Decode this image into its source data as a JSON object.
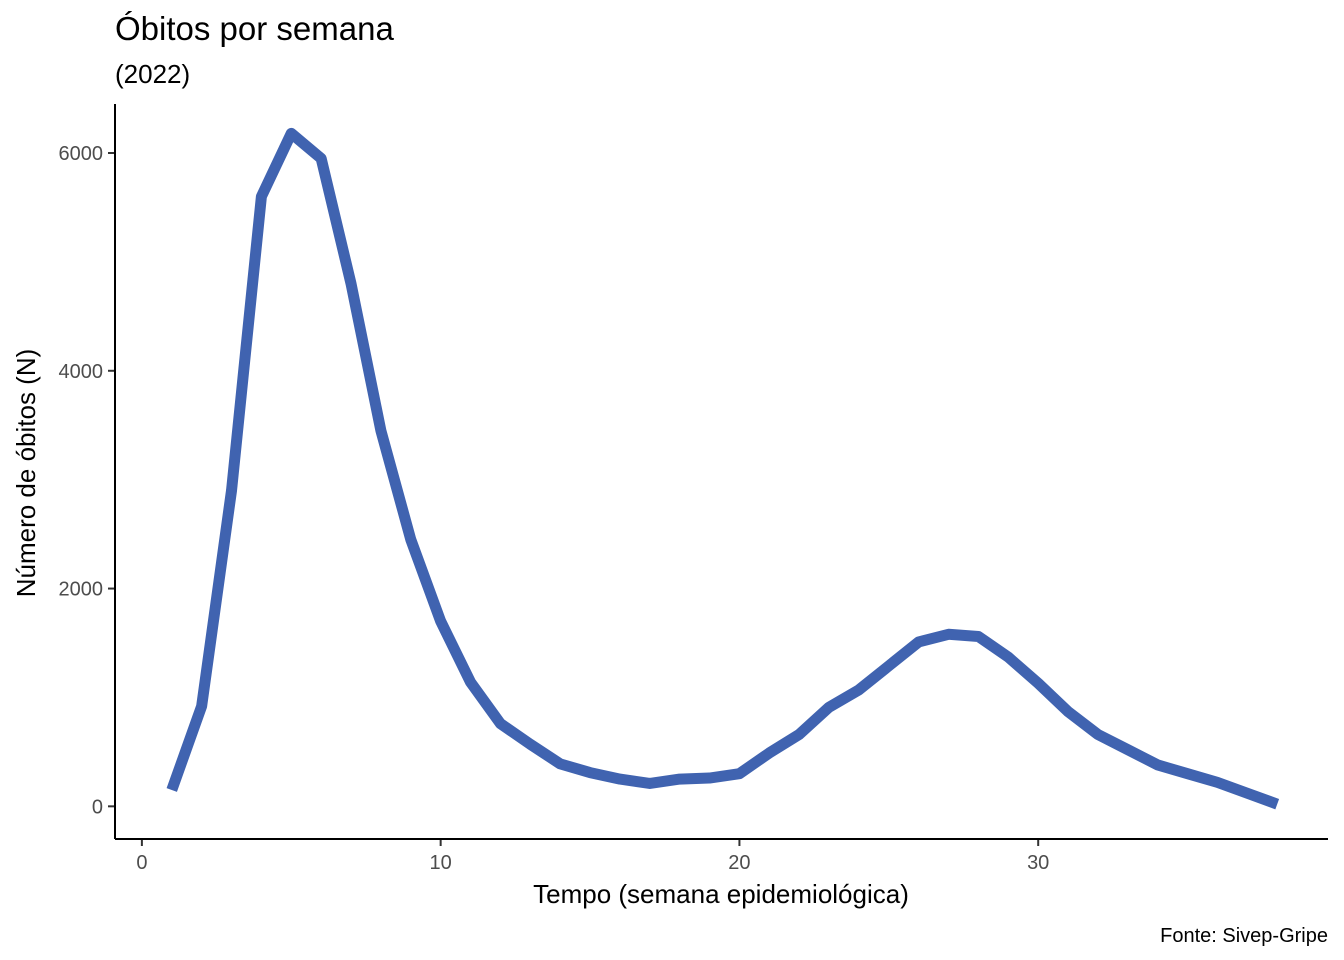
{
  "chart_data": {
    "type": "line",
    "title": "Óbitos por semana",
    "subtitle": "(2022)",
    "xlabel": "Tempo (semana epidemiológica)",
    "ylabel": "Número de óbitos (N)",
    "caption": "Fonte: Sivep-Gripe",
    "xlim": [
      -0.9,
      39.7
    ],
    "ylim": [
      -300,
      6450
    ],
    "xticks": [
      0,
      10,
      20,
      30
    ],
    "yticks": [
      0,
      2000,
      4000,
      6000
    ],
    "grid": false,
    "legend": "none",
    "series": [
      {
        "color": "#4063b0",
        "x": [
          1,
          2,
          3,
          4,
          5,
          6,
          7,
          8,
          9,
          10,
          11,
          12,
          13,
          14,
          15,
          16,
          17,
          18,
          19,
          20,
          21,
          22,
          23,
          24,
          25,
          26,
          27,
          28,
          29,
          30,
          31,
          32,
          33,
          34,
          35,
          36,
          37,
          38
        ],
        "y": [
          150,
          920,
          2900,
          5600,
          6180,
          5950,
          4800,
          3450,
          2450,
          1700,
          1140,
          760,
          570,
          390,
          310,
          250,
          210,
          250,
          260,
          300,
          490,
          660,
          910,
          1070,
          1290,
          1510,
          1580,
          1560,
          1370,
          1130,
          870,
          660,
          520,
          380,
          300,
          220,
          120,
          20
        ]
      }
    ]
  }
}
